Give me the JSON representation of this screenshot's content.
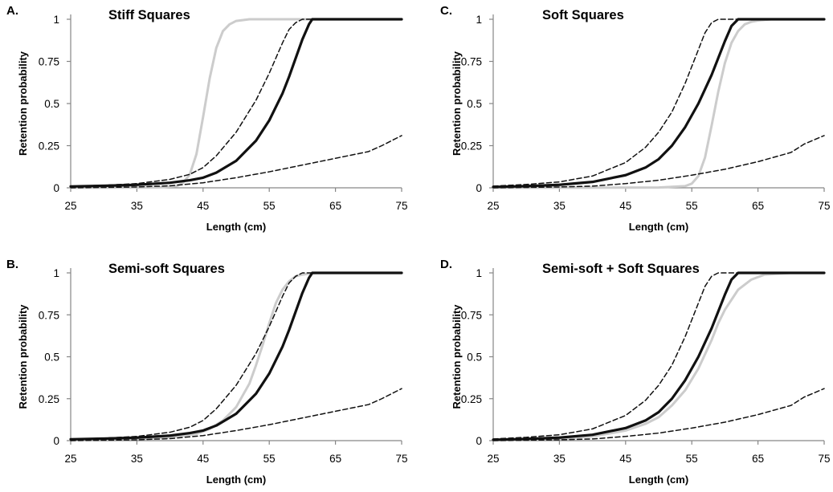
{
  "chart_data": [
    {
      "type": "line",
      "panel_label": "A.",
      "title": "Stiff Squares",
      "xlabel": "Length (cm)",
      "ylabel": "Retention probability",
      "xlim": [
        25,
        75
      ],
      "ylim": [
        0,
        1
      ],
      "x_ticks": [
        "25",
        "35",
        "45",
        "55",
        "65",
        "75"
      ],
      "y_ticks": [
        "0",
        "0.25",
        "0.5",
        "0.75",
        "1"
      ],
      "grid": false,
      "series": [
        {
          "style": "upper-ci-dashed",
          "color": "#111111",
          "x": [
            25,
            30,
            35,
            40,
            43,
            45,
            47,
            50,
            53,
            55,
            57,
            58,
            59,
            60,
            62,
            65,
            70,
            75
          ],
          "y": [
            0.01,
            0.015,
            0.025,
            0.05,
            0.08,
            0.12,
            0.19,
            0.33,
            0.52,
            0.68,
            0.86,
            0.94,
            0.98,
            1.0,
            1.0,
            1.0,
            1.0,
            1.0
          ]
        },
        {
          "style": "estimate-solid",
          "color": "#111111",
          "x": [
            25,
            30,
            35,
            40,
            43,
            45,
            47,
            50,
            53,
            55,
            57,
            58,
            59,
            60,
            61,
            61.5,
            65,
            70,
            75
          ],
          "y": [
            0.008,
            0.012,
            0.018,
            0.03,
            0.045,
            0.06,
            0.09,
            0.16,
            0.28,
            0.4,
            0.56,
            0.66,
            0.77,
            0.88,
            0.97,
            1.0,
            1.0,
            1.0,
            1.0
          ]
        },
        {
          "style": "lower-ci-dashed",
          "color": "#111111",
          "x": [
            25,
            35,
            40,
            45,
            50,
            55,
            60,
            65,
            70,
            72,
            75
          ],
          "y": [
            0.0,
            0.005,
            0.012,
            0.03,
            0.06,
            0.095,
            0.135,
            0.175,
            0.215,
            0.25,
            0.31
          ]
        },
        {
          "style": "comparison-gray",
          "color": "#cccccc",
          "x": [
            25,
            38,
            41,
            42,
            43,
            44,
            45,
            46,
            47,
            48,
            49,
            50,
            52,
            55,
            60,
            75
          ],
          "y": [
            0.0,
            0.002,
            0.01,
            0.03,
            0.08,
            0.2,
            0.42,
            0.65,
            0.83,
            0.93,
            0.97,
            0.99,
            1.0,
            1.0,
            1.0,
            1.0
          ]
        }
      ]
    },
    {
      "type": "line",
      "panel_label": "C.",
      "title": "Soft Squares",
      "xlabel": "Length (cm)",
      "ylabel": "Retention probability",
      "xlim": [
        25,
        75
      ],
      "ylim": [
        0,
        1
      ],
      "x_ticks": [
        "25",
        "35",
        "45",
        "55",
        "65",
        "75"
      ],
      "y_ticks": [
        "0",
        "0.25",
        "0.5",
        "0.75",
        "1"
      ],
      "grid": false,
      "series": [
        {
          "style": "upper-ci-dashed",
          "color": "#111111",
          "x": [
            25,
            30,
            35,
            40,
            45,
            48,
            50,
            52,
            54,
            56,
            57,
            58,
            59,
            60,
            65,
            75
          ],
          "y": [
            0.01,
            0.02,
            0.035,
            0.07,
            0.15,
            0.24,
            0.33,
            0.45,
            0.62,
            0.82,
            0.92,
            0.98,
            1.0,
            1.0,
            1.0,
            1.0
          ]
        },
        {
          "style": "estimate-solid",
          "color": "#111111",
          "x": [
            25,
            30,
            35,
            40,
            45,
            48,
            50,
            52,
            54,
            56,
            58,
            59,
            60,
            61,
            62,
            65,
            75
          ],
          "y": [
            0.005,
            0.01,
            0.018,
            0.035,
            0.075,
            0.12,
            0.17,
            0.25,
            0.36,
            0.5,
            0.67,
            0.77,
            0.87,
            0.96,
            1.0,
            1.0,
            1.0
          ]
        },
        {
          "style": "lower-ci-dashed",
          "color": "#111111",
          "x": [
            25,
            35,
            40,
            45,
            50,
            55,
            60,
            65,
            70,
            72,
            75
          ],
          "y": [
            0.0,
            0.005,
            0.01,
            0.025,
            0.045,
            0.075,
            0.11,
            0.155,
            0.21,
            0.26,
            0.31
          ]
        },
        {
          "style": "comparison-gray",
          "color": "#cccccc",
          "x": [
            25,
            50,
            54,
            55,
            56,
            57,
            58,
            59,
            60,
            61,
            62,
            63,
            64,
            65,
            67,
            70,
            75
          ],
          "y": [
            0.0,
            0.002,
            0.01,
            0.025,
            0.07,
            0.18,
            0.37,
            0.57,
            0.74,
            0.86,
            0.93,
            0.97,
            0.985,
            0.993,
            1.0,
            1.0,
            1.0
          ]
        }
      ]
    },
    {
      "type": "line",
      "panel_label": "B.",
      "title": "Semi-soft Squares",
      "xlabel": "Length (cm)",
      "ylabel": "Retention probability",
      "xlim": [
        25,
        75
      ],
      "ylim": [
        0,
        1
      ],
      "x_ticks": [
        "25",
        "35",
        "45",
        "55",
        "65",
        "75"
      ],
      "y_ticks": [
        "0",
        "0.25",
        "0.5",
        "0.75",
        "1"
      ],
      "grid": false,
      "series": [
        {
          "style": "upper-ci-dashed",
          "color": "#111111",
          "x": [
            25,
            30,
            35,
            40,
            43,
            45,
            47,
            50,
            53,
            55,
            57,
            58,
            59,
            60,
            62,
            65,
            70,
            75
          ],
          "y": [
            0.01,
            0.015,
            0.025,
            0.05,
            0.08,
            0.12,
            0.19,
            0.33,
            0.52,
            0.68,
            0.86,
            0.94,
            0.98,
            1.0,
            1.0,
            1.0,
            1.0,
            1.0
          ]
        },
        {
          "style": "estimate-solid",
          "color": "#111111",
          "x": [
            25,
            30,
            35,
            40,
            43,
            45,
            47,
            50,
            53,
            55,
            57,
            58,
            59,
            60,
            61,
            61.5,
            65,
            70,
            75
          ],
          "y": [
            0.008,
            0.012,
            0.018,
            0.03,
            0.045,
            0.06,
            0.09,
            0.16,
            0.28,
            0.4,
            0.56,
            0.66,
            0.77,
            0.88,
            0.97,
            1.0,
            1.0,
            1.0,
            1.0
          ]
        },
        {
          "style": "lower-ci-dashed",
          "color": "#111111",
          "x": [
            25,
            35,
            40,
            45,
            50,
            55,
            60,
            65,
            70,
            72,
            75
          ],
          "y": [
            0.0,
            0.005,
            0.012,
            0.03,
            0.06,
            0.095,
            0.135,
            0.175,
            0.215,
            0.25,
            0.31
          ]
        },
        {
          "style": "comparison-gray",
          "color": "#cccccc",
          "x": [
            25,
            35,
            40,
            44,
            46,
            48,
            50,
            52,
            53,
            54,
            55,
            56,
            57,
            58,
            59,
            60,
            62,
            65,
            75
          ],
          "y": [
            0.005,
            0.01,
            0.02,
            0.04,
            0.07,
            0.12,
            0.2,
            0.34,
            0.45,
            0.57,
            0.7,
            0.82,
            0.9,
            0.95,
            0.98,
            0.99,
            1.0,
            1.0,
            1.0
          ]
        }
      ]
    },
    {
      "type": "line",
      "panel_label": "D.",
      "title": "Semi-soft  + Soft Squares",
      "xlabel": "Length (cm)",
      "ylabel": "Retention probability",
      "xlim": [
        25,
        75
      ],
      "ylim": [
        0,
        1
      ],
      "x_ticks": [
        "25",
        "35",
        "45",
        "55",
        "65",
        "75"
      ],
      "y_ticks": [
        "0",
        "0.25",
        "0.5",
        "0.75",
        "1"
      ],
      "grid": false,
      "series": [
        {
          "style": "upper-ci-dashed",
          "color": "#111111",
          "x": [
            25,
            30,
            35,
            40,
            45,
            48,
            50,
            52,
            54,
            56,
            57,
            58,
            59,
            60,
            65,
            75
          ],
          "y": [
            0.01,
            0.02,
            0.035,
            0.07,
            0.15,
            0.24,
            0.33,
            0.45,
            0.62,
            0.82,
            0.92,
            0.98,
            1.0,
            1.0,
            1.0,
            1.0
          ]
        },
        {
          "style": "estimate-solid",
          "color": "#111111",
          "x": [
            25,
            30,
            35,
            40,
            45,
            48,
            50,
            52,
            54,
            56,
            58,
            59,
            60,
            61,
            62,
            65,
            75
          ],
          "y": [
            0.005,
            0.01,
            0.018,
            0.035,
            0.075,
            0.12,
            0.17,
            0.25,
            0.36,
            0.5,
            0.67,
            0.77,
            0.87,
            0.96,
            1.0,
            1.0,
            1.0
          ]
        },
        {
          "style": "lower-ci-dashed",
          "color": "#111111",
          "x": [
            25,
            35,
            40,
            45,
            50,
            55,
            60,
            65,
            70,
            72,
            75
          ],
          "y": [
            0.0,
            0.005,
            0.01,
            0.025,
            0.045,
            0.075,
            0.11,
            0.155,
            0.21,
            0.26,
            0.31
          ]
        },
        {
          "style": "comparison-gray",
          "color": "#cccccc",
          "x": [
            25,
            35,
            40,
            45,
            48,
            50,
            52,
            54,
            56,
            58,
            59,
            60,
            62,
            64,
            66,
            70,
            75
          ],
          "y": [
            0.003,
            0.01,
            0.025,
            0.06,
            0.1,
            0.14,
            0.21,
            0.3,
            0.43,
            0.6,
            0.7,
            0.78,
            0.9,
            0.96,
            0.99,
            1.0,
            1.0
          ]
        }
      ]
    }
  ]
}
